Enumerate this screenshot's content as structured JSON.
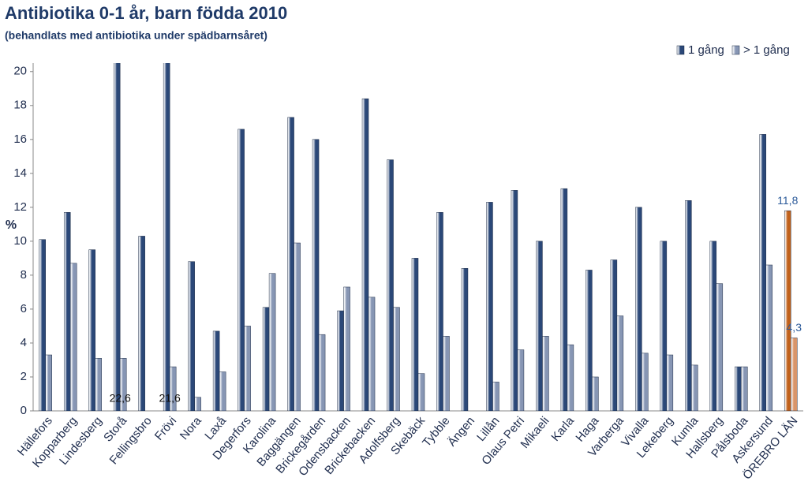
{
  "chart_data": {
    "type": "bar",
    "title": "Antibiotika 0-1 år, barn födda 2010",
    "subtitle": "(behandlats med antibiotika under spädbarnsåret)",
    "y_label": "%",
    "categories": [
      "Hällefors",
      "Kopparberg",
      "Lindesberg",
      "Storå",
      "Fellingsbro",
      "Frövi",
      "Nora",
      "Laxå",
      "Degerfors",
      "Karolina",
      "Baggängen",
      "Brickegården",
      "Odensbacken",
      "Brickebacken",
      "Adolfsberg",
      "Skebäck",
      "Tybble",
      "Ängen",
      "Lillån",
      "Olaus Petri",
      "Mikaeli",
      "Karla",
      "Haga",
      "Varberga",
      "Vivalla",
      "Lekeberg",
      "Kumla",
      "Hallsberg",
      "Pålsboda",
      "Askersund",
      "ÖREBRO LÄN"
    ],
    "series": [
      {
        "name": "1 gång",
        "color": "#2b4878",
        "values": [
          10.1,
          11.7,
          9.5,
          22.6,
          10.3,
          21.6,
          8.8,
          4.7,
          16.6,
          6.1,
          17.3,
          16.0,
          5.9,
          18.4,
          14.8,
          9.0,
          11.7,
          8.4,
          12.3,
          13.0,
          10.0,
          13.1,
          8.3,
          8.9,
          12.0,
          10.0,
          12.4,
          10.0,
          2.6,
          16.3,
          11.8
        ],
        "value_labels": [
          null,
          null,
          null,
          "22,6",
          null,
          "21,6",
          null,
          null,
          null,
          null,
          null,
          null,
          null,
          null,
          null,
          null,
          null,
          null,
          null,
          null,
          null,
          null,
          null,
          null,
          null,
          null,
          null,
          null,
          null,
          null,
          "11,8"
        ]
      },
      {
        "name": "> 1 gång",
        "color": "#8796b4",
        "values": [
          3.3,
          8.7,
          3.1,
          3.1,
          null,
          2.6,
          0.8,
          2.3,
          5.0,
          8.1,
          9.9,
          4.5,
          7.3,
          6.7,
          6.1,
          2.2,
          4.4,
          null,
          1.7,
          3.6,
          4.4,
          3.9,
          2.0,
          5.6,
          3.4,
          3.3,
          2.7,
          7.5,
          2.6,
          8.6,
          4.3
        ],
        "value_labels": [
          null,
          null,
          null,
          null,
          null,
          null,
          null,
          null,
          null,
          null,
          null,
          null,
          null,
          null,
          null,
          null,
          null,
          null,
          null,
          null,
          null,
          null,
          null,
          null,
          null,
          null,
          null,
          null,
          null,
          null,
          "4,3"
        ]
      }
    ],
    "highlight": {
      "category": "ÖREBRO LÄN",
      "colors": [
        "#c0601a",
        "#d9956a"
      ]
    },
    "ylim": [
      0,
      20.5
    ],
    "yticks": [
      0,
      2,
      4,
      6,
      8,
      10,
      12,
      14,
      16,
      18,
      20
    ],
    "grid": false,
    "legend": "top-right"
  }
}
